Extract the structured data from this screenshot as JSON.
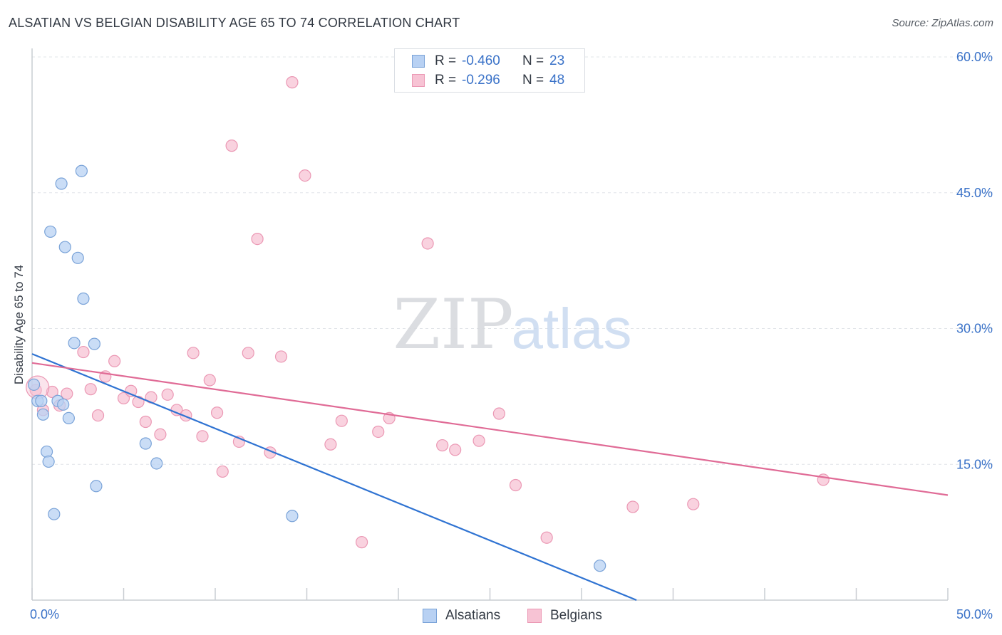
{
  "chart_data": {
    "type": "scatter",
    "title": "ALSATIAN VS BELGIAN DISABILITY AGE 65 TO 74 CORRELATION CHART",
    "source": "Source: ZipAtlas.com",
    "xlabel": "",
    "ylabel": "Disability Age 65 to 74",
    "xlim": [
      0,
      50
    ],
    "ylim": [
      0,
      60
    ],
    "x_tick_labels": {
      "left": "0.0%",
      "right": "50.0%"
    },
    "y_ticks": [
      15,
      30,
      45,
      60
    ],
    "y_tick_labels": [
      "15.0%",
      "30.0%",
      "45.0%",
      "60.0%"
    ],
    "watermark": {
      "bold": "ZIP",
      "light": "atlas"
    },
    "legend_top": [
      {
        "r_label": "R =",
        "r_value": "-0.460",
        "n_label": "N =",
        "n_value": "23"
      },
      {
        "r_label": "R =",
        "r_value": "-0.296",
        "n_label": "N =",
        "n_value": "48"
      }
    ],
    "colors": {
      "alsatians_fill": "#b8d1f3",
      "alsatians_stroke": "#7aa3d8",
      "alsatians_line": "#2f73d2",
      "belgians_fill": "#f7c3d4",
      "belgians_stroke": "#eb98b4",
      "belgians_line": "#e06b96",
      "axis_text": "#3a72c8",
      "grid": "#e1e4e8"
    },
    "series": [
      {
        "name": "Alsatians",
        "trend": {
          "x0": 0,
          "y0": 27.2,
          "x1": 33,
          "y1": 0
        },
        "points": [
          [
            0.1,
            23.8
          ],
          [
            0.3,
            22.0
          ],
          [
            0.5,
            22.0
          ],
          [
            0.6,
            20.5
          ],
          [
            0.8,
            16.4
          ],
          [
            0.9,
            15.3
          ],
          [
            1.0,
            40.7
          ],
          [
            1.2,
            9.5
          ],
          [
            1.4,
            22.0
          ],
          [
            1.6,
            46.0
          ],
          [
            1.7,
            21.6
          ],
          [
            1.8,
            39.0
          ],
          [
            2.0,
            20.1
          ],
          [
            2.3,
            28.4
          ],
          [
            2.5,
            37.8
          ],
          [
            2.7,
            47.4
          ],
          [
            2.8,
            33.3
          ],
          [
            3.4,
            28.3
          ],
          [
            3.5,
            12.6
          ],
          [
            6.2,
            17.3
          ],
          [
            6.8,
            15.1
          ],
          [
            14.2,
            9.3
          ],
          [
            31.0,
            3.8
          ]
        ]
      },
      {
        "name": "Belgians",
        "trend": {
          "x0": 0,
          "y0": 26.2,
          "x1": 50,
          "y1": 11.6
        },
        "points": [
          [
            0.2,
            23.2
          ],
          [
            0.6,
            21.0
          ],
          [
            1.1,
            23.0
          ],
          [
            1.5,
            21.5
          ],
          [
            1.9,
            22.8
          ],
          [
            2.8,
            27.4
          ],
          [
            3.2,
            23.3
          ],
          [
            3.6,
            20.4
          ],
          [
            4.0,
            24.7
          ],
          [
            4.5,
            26.4
          ],
          [
            5.0,
            22.3
          ],
          [
            5.4,
            23.1
          ],
          [
            5.8,
            21.9
          ],
          [
            6.2,
            19.7
          ],
          [
            6.5,
            22.4
          ],
          [
            7.0,
            18.3
          ],
          [
            7.4,
            22.7
          ],
          [
            7.9,
            21.0
          ],
          [
            8.4,
            20.4
          ],
          [
            8.8,
            27.3
          ],
          [
            9.3,
            18.1
          ],
          [
            9.7,
            24.3
          ],
          [
            10.1,
            20.7
          ],
          [
            10.4,
            14.2
          ],
          [
            10.9,
            50.2
          ],
          [
            11.3,
            17.5
          ],
          [
            11.8,
            27.3
          ],
          [
            12.3,
            39.9
          ],
          [
            13.0,
            16.3
          ],
          [
            13.6,
            26.9
          ],
          [
            14.2,
            57.2
          ],
          [
            14.9,
            46.9
          ],
          [
            16.3,
            17.2
          ],
          [
            16.9,
            19.8
          ],
          [
            18.0,
            6.4
          ],
          [
            18.9,
            18.6
          ],
          [
            19.5,
            20.1
          ],
          [
            21.6,
            39.4
          ],
          [
            22.4,
            17.1
          ],
          [
            23.1,
            16.6
          ],
          [
            24.4,
            17.6
          ],
          [
            25.5,
            20.6
          ],
          [
            26.4,
            12.7
          ],
          [
            28.1,
            6.9
          ],
          [
            32.8,
            10.3
          ],
          [
            36.1,
            10.6
          ],
          [
            43.2,
            13.3
          ],
          [
            0.3,
            23.5
          ]
        ]
      }
    ]
  },
  "legend_bottom": [
    {
      "label": "Alsatians"
    },
    {
      "label": "Belgians"
    }
  ]
}
